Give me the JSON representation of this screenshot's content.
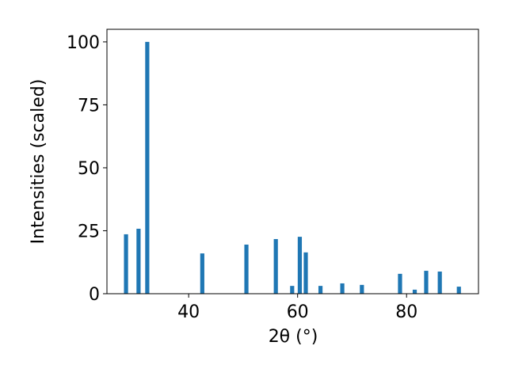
{
  "chart_data": {
    "type": "bar",
    "x": [
      28.5,
      30.8,
      32.4,
      42.5,
      50.6,
      56.0,
      59.0,
      60.4,
      61.5,
      64.2,
      68.2,
      71.8,
      78.8,
      81.5,
      83.6,
      86.1,
      89.6
    ],
    "values": [
      23.6,
      25.8,
      100,
      16.0,
      19.5,
      21.7,
      3.1,
      22.6,
      16.4,
      3.1,
      4.1,
      3.5,
      7.9,
      1.6,
      9.1,
      8.8,
      2.8
    ],
    "color": "#1f77b4",
    "xlabel": "2θ (°)",
    "ylabel": "Intensities (scaled)",
    "xlim": [
      25.0,
      93.2
    ],
    "ylim": [
      0,
      105
    ],
    "xticks": [
      40,
      60,
      80
    ],
    "yticks": [
      0,
      25,
      50,
      75,
      100
    ]
  }
}
